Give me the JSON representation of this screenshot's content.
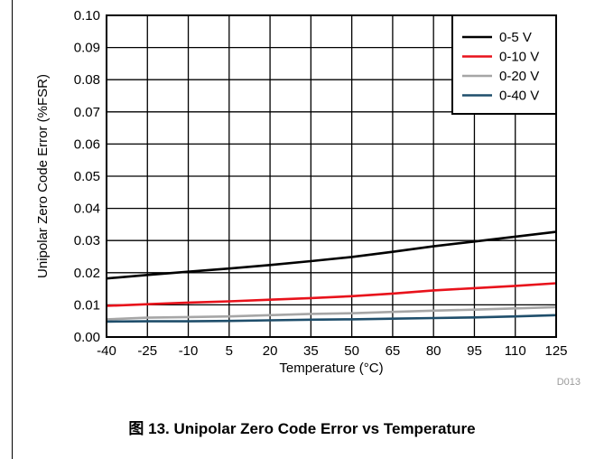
{
  "header_fragment": "",
  "caption": "图 13. Unipolar Zero Code Error vs Temperature",
  "chart_data": {
    "type": "line",
    "title": "",
    "xlabel": "Temperature (°C)",
    "ylabel": "Unipolar Zero Code Error (%FSR)",
    "xlim": [
      -40,
      125
    ],
    "ylim": [
      0,
      0.1
    ],
    "xticks": [
      -40,
      -25,
      -10,
      5,
      20,
      35,
      50,
      65,
      80,
      95,
      110,
      125
    ],
    "xtick_labels": [
      "-40",
      "-25",
      "-10",
      "5",
      "20",
      "35",
      "50",
      "65",
      "80",
      "95",
      "110",
      "125"
    ],
    "yticks": [
      0,
      0.01,
      0.02,
      0.03,
      0.04,
      0.05,
      0.06,
      0.07,
      0.08,
      0.09,
      0.1
    ],
    "ytick_labels": [
      "0.00",
      "0.01",
      "0.02",
      "0.03",
      "0.04",
      "0.05",
      "0.06",
      "0.07",
      "0.08",
      "0.09",
      "0.10"
    ],
    "grid": true,
    "legend_position": "top-right",
    "figure_id": "D013",
    "series": [
      {
        "name": "0-5 V",
        "color": "#000000",
        "x": [
          -40,
          -25,
          -10,
          5,
          20,
          35,
          50,
          65,
          80,
          95,
          110,
          125
        ],
        "y": [
          0.0182,
          0.0193,
          0.0203,
          0.0213,
          0.0224,
          0.0236,
          0.0249,
          0.0265,
          0.0282,
          0.0297,
          0.0312,
          0.0327
        ]
      },
      {
        "name": "0-10 V",
        "color": "#e8121b",
        "x": [
          -40,
          -25,
          -10,
          5,
          20,
          35,
          50,
          65,
          80,
          95,
          110,
          125
        ],
        "y": [
          0.0097,
          0.0102,
          0.0107,
          0.0111,
          0.0116,
          0.0121,
          0.0127,
          0.0135,
          0.0145,
          0.0152,
          0.0159,
          0.0167
        ]
      },
      {
        "name": "0-20 V",
        "color": "#a6a6a6",
        "x": [
          -40,
          -25,
          -10,
          5,
          20,
          35,
          50,
          65,
          80,
          95,
          110,
          125
        ],
        "y": [
          0.0055,
          0.006,
          0.0062,
          0.0064,
          0.0068,
          0.0072,
          0.0074,
          0.0078,
          0.0082,
          0.0085,
          0.0089,
          0.0093
        ]
      },
      {
        "name": "0-40 V",
        "color": "#1f4e6b",
        "x": [
          -40,
          -25,
          -10,
          5,
          20,
          35,
          50,
          65,
          80,
          95,
          110,
          125
        ],
        "y": [
          0.0048,
          0.0049,
          0.0049,
          0.005,
          0.0052,
          0.0054,
          0.0055,
          0.0057,
          0.0059,
          0.0061,
          0.0064,
          0.0068
        ]
      }
    ]
  }
}
